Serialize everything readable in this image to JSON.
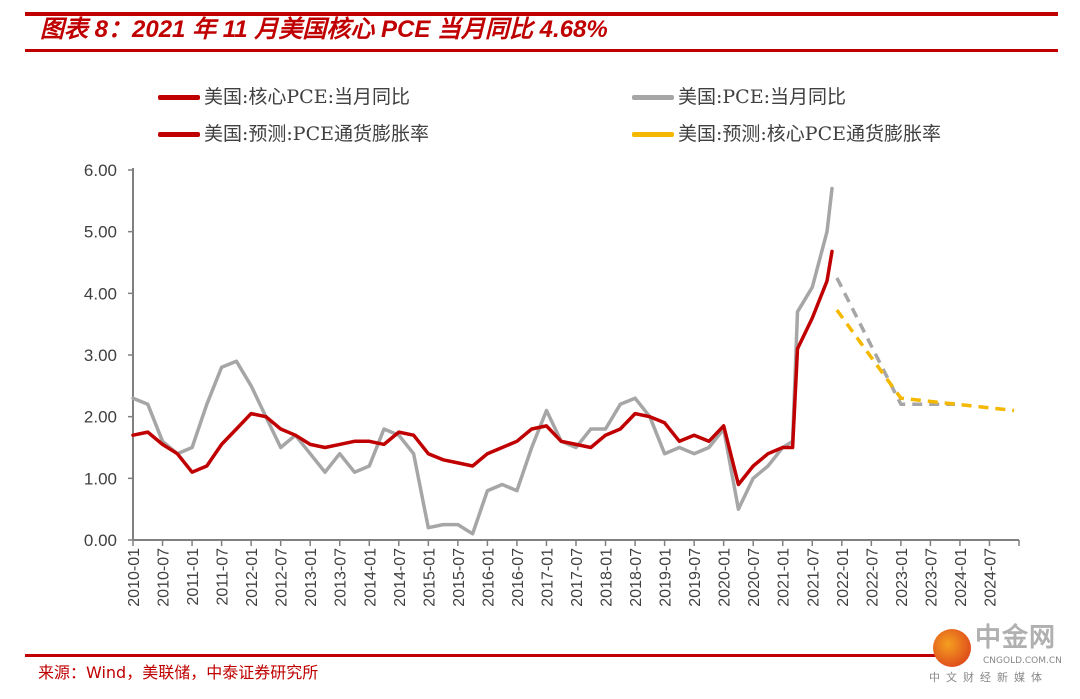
{
  "title": "图表 8：2021 年 11 月美国核心 PCE 当月同比 4.68%",
  "source": "来源：Wind，美联储，中泰证券研究所",
  "watermark": {
    "name": "中金网",
    "url": "CNGOLD.COM.CN",
    "tagline": "中文财经新媒体"
  },
  "chart_data": {
    "type": "line",
    "title": "2021 年 11 月美国核心 PCE 当月同比 4.68%",
    "xlabel": "",
    "ylabel": "",
    "ylim": [
      0,
      6
    ],
    "yticks": [
      "0.00",
      "1.00",
      "2.00",
      "3.00",
      "4.00",
      "5.00",
      "6.00"
    ],
    "xrange": [
      "2010-01",
      "2025-01"
    ],
    "xticks": [
      "2010-01",
      "2010-07",
      "2011-01",
      "2011-07",
      "2012-01",
      "2012-07",
      "2013-01",
      "2013-07",
      "2014-01",
      "2014-07",
      "2015-01",
      "2015-07",
      "2016-01",
      "2016-07",
      "2017-01",
      "2017-07",
      "2018-01",
      "2018-07",
      "2019-01",
      "2019-07",
      "2020-01",
      "2020-07",
      "2021-01",
      "2021-07",
      "2022-01",
      "2022-07",
      "2023-01",
      "2023-07",
      "2024-01",
      "2024-07"
    ],
    "grid": false,
    "legend_placement": "top",
    "series": [
      {
        "name": "美国:核心PCE:当月同比",
        "color": "#c00000",
        "dashed": false,
        "x": [
          "2010-01",
          "2010-04",
          "2010-07",
          "2010-10",
          "2011-01",
          "2011-04",
          "2011-07",
          "2011-10",
          "2012-01",
          "2012-04",
          "2012-07",
          "2012-10",
          "2013-01",
          "2013-04",
          "2013-07",
          "2013-10",
          "2014-01",
          "2014-04",
          "2014-07",
          "2014-10",
          "2015-01",
          "2015-04",
          "2015-07",
          "2015-10",
          "2016-01",
          "2016-04",
          "2016-07",
          "2016-10",
          "2017-01",
          "2017-04",
          "2017-07",
          "2017-10",
          "2018-01",
          "2018-04",
          "2018-07",
          "2018-10",
          "2019-01",
          "2019-04",
          "2019-07",
          "2019-10",
          "2020-01",
          "2020-04",
          "2020-07",
          "2020-10",
          "2021-01",
          "2021-03",
          "2021-04",
          "2021-07",
          "2021-10",
          "2021-11"
        ],
        "values": [
          1.7,
          1.75,
          1.55,
          1.4,
          1.1,
          1.2,
          1.55,
          1.8,
          2.05,
          2.0,
          1.8,
          1.7,
          1.55,
          1.5,
          1.55,
          1.6,
          1.6,
          1.55,
          1.75,
          1.7,
          1.4,
          1.3,
          1.25,
          1.2,
          1.4,
          1.5,
          1.6,
          1.8,
          1.85,
          1.6,
          1.55,
          1.5,
          1.7,
          1.8,
          2.05,
          2.0,
          1.9,
          1.6,
          1.7,
          1.6,
          1.85,
          0.9,
          1.2,
          1.4,
          1.5,
          1.5,
          3.1,
          3.6,
          4.2,
          4.68
        ]
      },
      {
        "name": "美国:PCE:当月同比",
        "color": "#a6a6a6",
        "dashed": false,
        "x": [
          "2010-01",
          "2010-04",
          "2010-07",
          "2010-10",
          "2011-01",
          "2011-04",
          "2011-07",
          "2011-10",
          "2012-01",
          "2012-04",
          "2012-07",
          "2012-10",
          "2013-01",
          "2013-04",
          "2013-07",
          "2013-10",
          "2014-01",
          "2014-04",
          "2014-07",
          "2014-10",
          "2015-01",
          "2015-04",
          "2015-07",
          "2015-10",
          "2016-01",
          "2016-04",
          "2016-07",
          "2016-10",
          "2017-01",
          "2017-04",
          "2017-07",
          "2017-10",
          "2018-01",
          "2018-04",
          "2018-07",
          "2018-10",
          "2019-01",
          "2019-04",
          "2019-07",
          "2019-10",
          "2020-01",
          "2020-04",
          "2020-07",
          "2020-10",
          "2021-01",
          "2021-03",
          "2021-04",
          "2021-07",
          "2021-10",
          "2021-11"
        ],
        "values": [
          2.3,
          2.2,
          1.6,
          1.4,
          1.5,
          2.2,
          2.8,
          2.9,
          2.5,
          2.0,
          1.5,
          1.7,
          1.4,
          1.1,
          1.4,
          1.1,
          1.2,
          1.8,
          1.7,
          1.4,
          0.2,
          0.25,
          0.25,
          0.1,
          0.8,
          0.9,
          0.8,
          1.5,
          2.1,
          1.6,
          1.5,
          1.8,
          1.8,
          2.2,
          2.3,
          2.0,
          1.4,
          1.5,
          1.4,
          1.5,
          1.8,
          0.5,
          1.0,
          1.2,
          1.5,
          1.6,
          3.7,
          4.1,
          5.0,
          5.7
        ]
      },
      {
        "name": "美国:预测:PCE通货膨胀率",
        "color": "#a6a6a6",
        "dashed": true,
        "x": [
          "2021-12",
          "2023-01",
          "2023-12"
        ],
        "values": [
          4.25,
          2.2,
          2.2
        ]
      },
      {
        "name": "美国:预测:核心PCE通货膨胀率",
        "color": "#f5b800",
        "dashed": true,
        "x": [
          "2021-12",
          "2023-01",
          "2024-12"
        ],
        "values": [
          3.73,
          2.3,
          2.1
        ]
      }
    ],
    "legend": [
      {
        "label": "美国:核心PCE:当月同比",
        "color": "#c00000"
      },
      {
        "label": "美国:PCE:当月同比",
        "color": "#a6a6a6"
      },
      {
        "label": "美国:预测:PCE通货膨胀率",
        "color": "#c00000"
      },
      {
        "label": "美国:预测:核心PCE通货膨胀率",
        "color": "#f5b800"
      }
    ]
  }
}
